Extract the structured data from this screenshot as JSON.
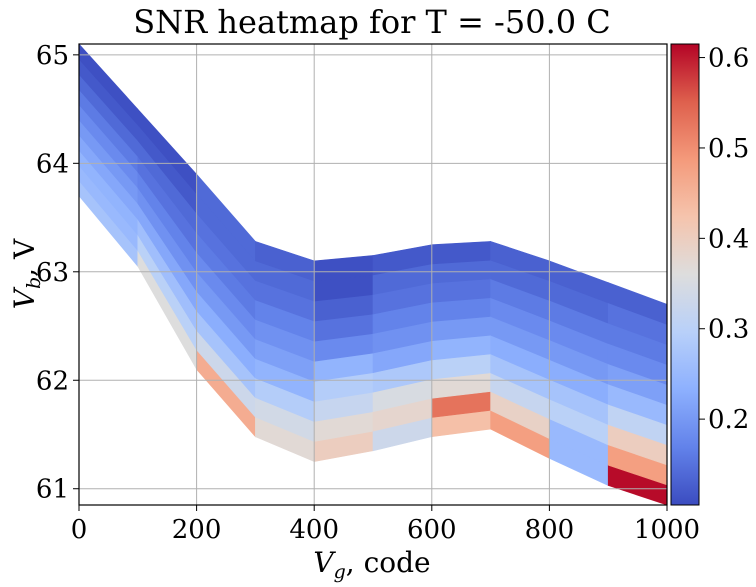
{
  "chart_data": {
    "type": "heatmap",
    "title": "SNR heatmap for T = -50.0 C",
    "xlabel": {
      "main": "V",
      "sub": "g",
      "rest": ", code"
    },
    "ylabel": {
      "main": "V",
      "sub": "b",
      "rest": ", V"
    },
    "xlim": [
      0,
      1000
    ],
    "ylim": [
      60.85,
      65.1
    ],
    "xticks": [
      "0",
      "200",
      "400",
      "600",
      "800",
      "1000"
    ],
    "yticks": [
      "61",
      "62",
      "63",
      "64",
      "65"
    ],
    "grid": true,
    "colorbar": {
      "colormap": "coolwarm",
      "vmin": 0.105,
      "vmax": 0.615,
      "ticks": [
        "0.2",
        "0.3",
        "0.4",
        "0.5",
        "0.6"
      ]
    },
    "x": [
      0,
      100,
      200,
      300,
      400,
      500,
      600,
      700,
      800,
      900,
      1000
    ],
    "y_bottom": [
      63.7,
      63.05,
      62.1,
      61.48,
      61.25,
      61.35,
      61.48,
      61.55,
      61.28,
      61.03,
      60.85
    ],
    "y_top": [
      65.1,
      64.5,
      63.9,
      63.28,
      63.1,
      63.15,
      63.25,
      63.28,
      63.1,
      62.9,
      62.7
    ],
    "rows": 10,
    "values": [
      [
        0.11,
        0.11,
        0.14,
        0.13,
        0.11,
        0.12,
        0.12,
        0.13,
        0.13,
        0.13
      ],
      [
        0.12,
        0.12,
        0.14,
        0.14,
        0.11,
        0.14,
        0.14,
        0.14,
        0.14,
        0.15
      ],
      [
        0.14,
        0.14,
        0.15,
        0.15,
        0.13,
        0.15,
        0.15,
        0.16,
        0.16,
        0.16
      ],
      [
        0.16,
        0.15,
        0.16,
        0.17,
        0.15,
        0.17,
        0.17,
        0.18,
        0.18,
        0.18
      ],
      [
        0.18,
        0.17,
        0.18,
        0.19,
        0.18,
        0.19,
        0.2,
        0.2,
        0.2,
        0.21
      ],
      [
        0.2,
        0.19,
        0.2,
        0.21,
        0.24,
        0.22,
        0.24,
        0.23,
        0.23,
        0.25
      ],
      [
        0.22,
        0.22,
        0.23,
        0.24,
        0.29,
        0.28,
        0.3,
        0.27,
        0.27,
        0.31
      ],
      [
        0.24,
        0.26,
        0.27,
        0.29,
        0.32,
        0.35,
        0.37,
        0.32,
        0.3,
        0.4
      ],
      [
        0.25,
        0.3,
        0.33,
        0.34,
        0.37,
        0.38,
        0.53,
        0.39,
        0.25,
        0.48
      ],
      [
        0.27,
        0.36,
        0.46,
        0.37,
        0.4,
        0.33,
        0.43,
        0.48,
        0.25,
        0.61
      ]
    ]
  }
}
